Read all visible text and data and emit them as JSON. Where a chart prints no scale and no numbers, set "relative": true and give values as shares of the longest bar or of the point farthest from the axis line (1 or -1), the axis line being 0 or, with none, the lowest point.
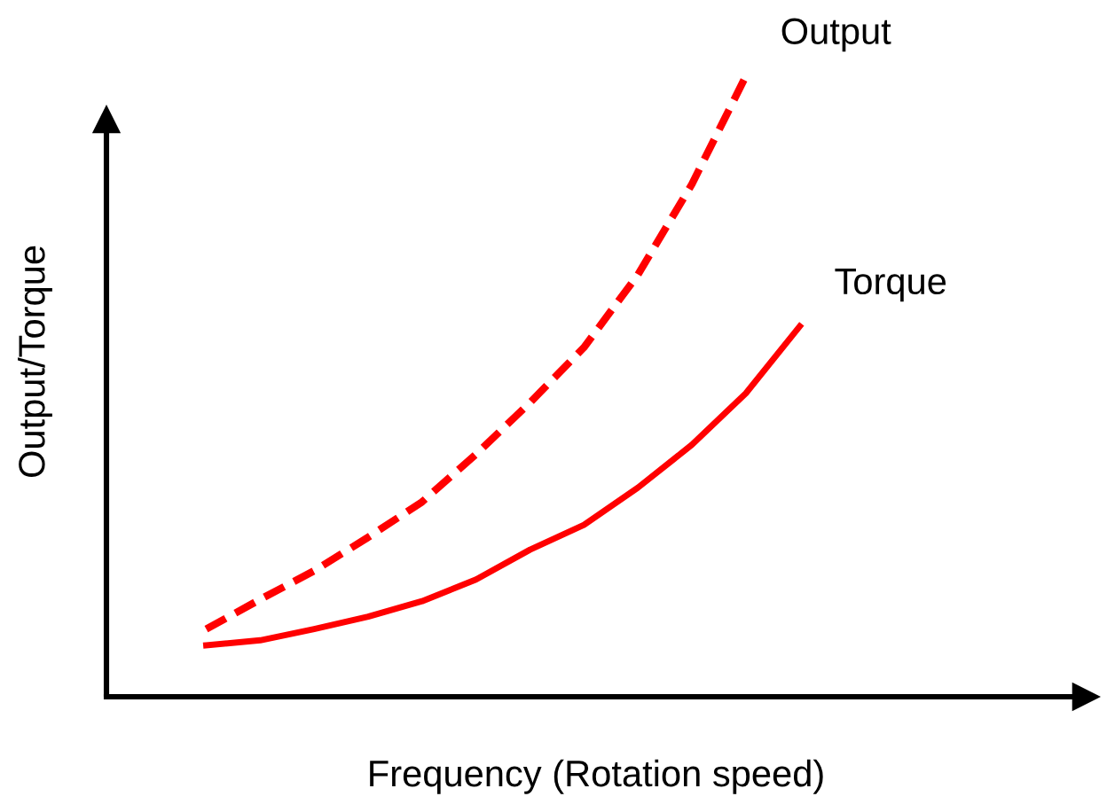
{
  "chart_data": {
    "type": "line",
    "relative": true,
    "xlabel": "Frequency (Rotation speed)",
    "ylabel": "Output/Torque",
    "categories": [
      null,
      null,
      null,
      null,
      null,
      null,
      null,
      null,
      null,
      null,
      null,
      null
    ],
    "series": [
      {
        "name": "Output",
        "color": "#ff0000",
        "line_style": "dashed",
        "values": [
          0.109,
          0.157,
          0.203,
          0.257,
          0.314,
          0.391,
          0.474,
          0.563,
          0.68,
          0.826,
          1,
          null
        ]
      },
      {
        "name": "Torque",
        "color": "#ff0000",
        "line_style": "solid",
        "values": [
          0.083,
          0.091,
          0.109,
          0.129,
          0.154,
          0.189,
          0.237,
          0.277,
          0.337,
          0.406,
          0.489,
          0.597
        ]
      }
    ]
  }
}
